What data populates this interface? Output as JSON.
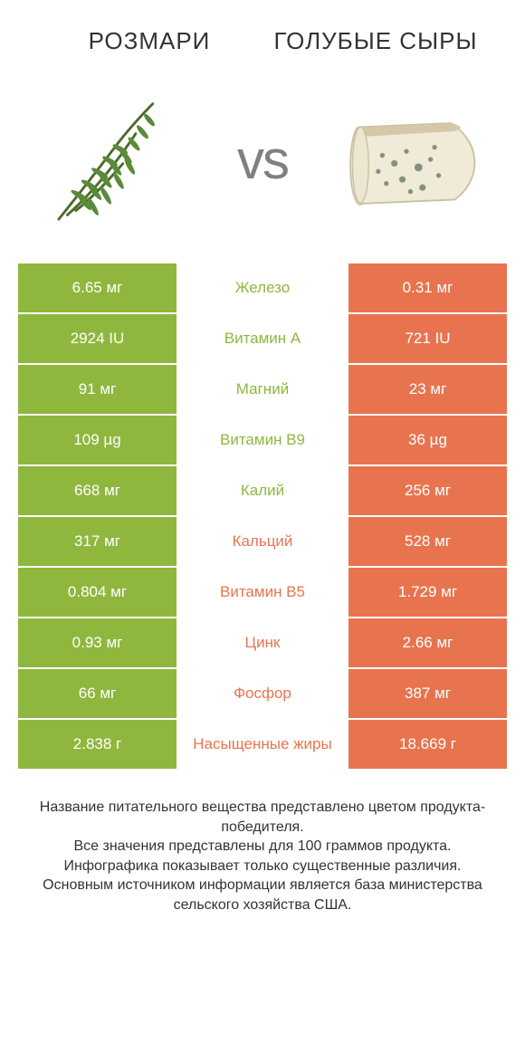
{
  "colors": {
    "left_bg": "#8fb73e",
    "right_bg": "#e8744f",
    "left_text": "#8fb73e",
    "right_text": "#e8744f",
    "vs": "#808080"
  },
  "header": {
    "left_title": "Розмари",
    "right_title": "Голубые сыры"
  },
  "vs_label": "vs",
  "rows": [
    {
      "left": "6.65 мг",
      "mid": "Железо",
      "right": "0.31 мг",
      "winner": "left"
    },
    {
      "left": "2924 IU",
      "mid": "Витамин A",
      "right": "721 IU",
      "winner": "left"
    },
    {
      "left": "91 мг",
      "mid": "Магний",
      "right": "23 мг",
      "winner": "left"
    },
    {
      "left": "109 µg",
      "mid": "Витамин B9",
      "right": "36 µg",
      "winner": "left"
    },
    {
      "left": "668 мг",
      "mid": "Калий",
      "right": "256 мг",
      "winner": "left"
    },
    {
      "left": "317 мг",
      "mid": "Кальций",
      "right": "528 мг",
      "winner": "right"
    },
    {
      "left": "0.804 мг",
      "mid": "Витамин B5",
      "right": "1.729 мг",
      "winner": "right"
    },
    {
      "left": "0.93 мг",
      "mid": "Цинк",
      "right": "2.66 мг",
      "winner": "right"
    },
    {
      "left": "66 мг",
      "mid": "Фосфор",
      "right": "387 мг",
      "winner": "right"
    },
    {
      "left": "2.838 г",
      "mid": "Насыщенные жиры",
      "right": "18.669 г",
      "winner": "right"
    }
  ],
  "footer": {
    "line1": "Название питательного вещества представлено цветом продукта-победителя.",
    "line2": "Все значения представлены для 100 граммов продукта.",
    "line3": "Инфографика показывает только существенные различия.",
    "line4": "Основным источником информации является база министерства сельского хозяйства США."
  }
}
